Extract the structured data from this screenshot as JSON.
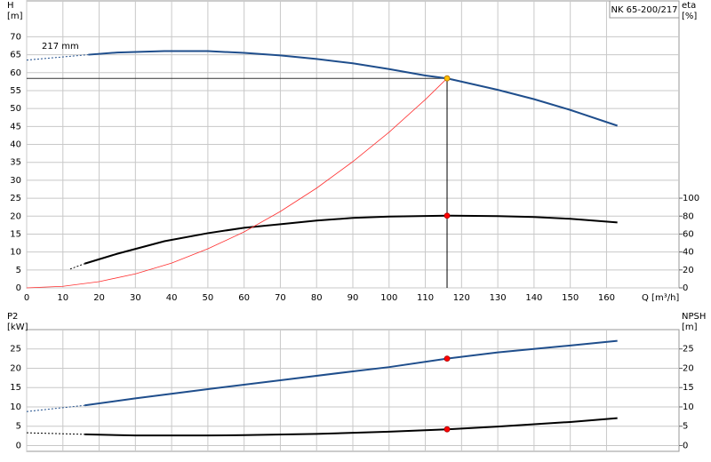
{
  "chart_data": [
    {
      "type": "line",
      "title": "NK 65-200/217",
      "ylabel": "H",
      "yunit": "[m]",
      "y2label": "eta",
      "y2unit": "[%]",
      "xlabel": "Q [m³/h]",
      "annotations": [
        "217 mm"
      ],
      "xlim": [
        0,
        180
      ],
      "xticks": [
        0,
        10,
        20,
        30,
        40,
        50,
        60,
        70,
        80,
        90,
        100,
        110,
        120,
        130,
        140,
        150,
        160
      ],
      "show_xtick_labels": true,
      "ylim": [
        0,
        80
      ],
      "yticks": [
        0,
        5,
        10,
        15,
        20,
        25,
        30,
        35,
        40,
        45,
        50,
        55,
        60,
        65,
        70
      ],
      "y2lim": [
        0,
        320
      ],
      "y2ticks": [
        0,
        20,
        40,
        60,
        80,
        100
      ],
      "grid": true,
      "series": [
        {
          "color": "#1f4e8c",
          "width": 2,
          "style": "dashed",
          "x": [
            0,
            17
          ],
          "values": [
            63.5,
            65
          ]
        },
        {
          "color": "#1f4e8c",
          "width": 2,
          "style": "solid",
          "x": [
            17,
            25,
            38,
            50,
            60,
            70,
            80,
            90,
            100,
            110,
            116,
            120,
            130,
            140,
            150,
            163
          ],
          "values": [
            65,
            65.6,
            66,
            66,
            65.5,
            64.8,
            63.8,
            62.6,
            61,
            59.2,
            58.4,
            57.5,
            55.2,
            52.6,
            49.6,
            45.2
          ]
        },
        {
          "color": "#000000",
          "width": 2,
          "style": "dashed",
          "axis": "y2",
          "x": [
            12,
            16
          ],
          "values": [
            21,
            27
          ]
        },
        {
          "color": "#000000",
          "width": 2,
          "style": "solid",
          "axis": "y2",
          "x": [
            16,
            25,
            38,
            50,
            60,
            70,
            80,
            90,
            100,
            116,
            130,
            140,
            150,
            163
          ],
          "values": [
            27,
            38,
            52,
            61,
            67,
            71,
            75,
            78,
            79.5,
            80.5,
            80,
            79,
            77,
            73
          ]
        },
        {
          "color": "#ff3030",
          "width": 0.8,
          "style": "solid",
          "x": [
            0,
            10,
            20,
            30,
            40,
            50,
            60,
            70,
            80,
            90,
            100,
            110,
            116
          ],
          "values": [
            0,
            0.43,
            1.74,
            3.9,
            6.9,
            10.9,
            15.6,
            21.3,
            27.8,
            35.2,
            43.4,
            52.5,
            58.4
          ]
        }
      ],
      "points": [
        {
          "x": 116,
          "y": 58.4,
          "color": "#ffc000"
        },
        {
          "x": 116,
          "y": 80.5,
          "axis": "y2",
          "color": "#ff0000"
        }
      ],
      "operating_lines": true
    },
    {
      "type": "line",
      "ylabel": "P2",
      "yunit": "[kW]",
      "y2label": "NPSH",
      "y2unit": "[m]",
      "xlim": [
        0,
        180
      ],
      "xticks": [
        0,
        10,
        20,
        30,
        40,
        50,
        60,
        70,
        80,
        90,
        100,
        110,
        120,
        130,
        140,
        150,
        160
      ],
      "show_xtick_labels": false,
      "ylim": [
        -1.5,
        30
      ],
      "yticks": [
        0,
        5,
        10,
        15,
        20,
        25
      ],
      "y2lim": [
        -1.5,
        30
      ],
      "y2ticks": [
        0,
        5,
        10,
        15,
        20,
        25
      ],
      "grid": true,
      "series": [
        {
          "color": "#1f4e8c",
          "width": 2,
          "style": "dashed",
          "x": [
            0,
            16
          ],
          "values": [
            8.8,
            10.4
          ]
        },
        {
          "color": "#1f4e8c",
          "width": 2,
          "style": "solid",
          "x": [
            16,
            30,
            50,
            70,
            90,
            100,
            116,
            130,
            150,
            163
          ],
          "values": [
            10.4,
            12.2,
            14.6,
            16.9,
            19.2,
            20.3,
            22.5,
            24.1,
            25.9,
            27.1
          ]
        },
        {
          "color": "#000000",
          "width": 2,
          "style": "dashed",
          "axis": "y2",
          "x": [
            0,
            16
          ],
          "values": [
            3.3,
            2.9
          ]
        },
        {
          "color": "#000000",
          "width": 2,
          "style": "solid",
          "axis": "y2",
          "x": [
            16,
            30,
            50,
            60,
            80,
            100,
            116,
            130,
            150,
            163
          ],
          "values": [
            2.9,
            2.6,
            2.6,
            2.7,
            3.0,
            3.6,
            4.2,
            4.9,
            6.1,
            7.1
          ]
        }
      ],
      "points": [
        {
          "x": 116,
          "y": 22.5,
          "color": "#ff0000"
        },
        {
          "x": 116,
          "y": 4.2,
          "axis": "y2",
          "color": "#ff0000"
        }
      ],
      "operating_lines": false
    }
  ]
}
